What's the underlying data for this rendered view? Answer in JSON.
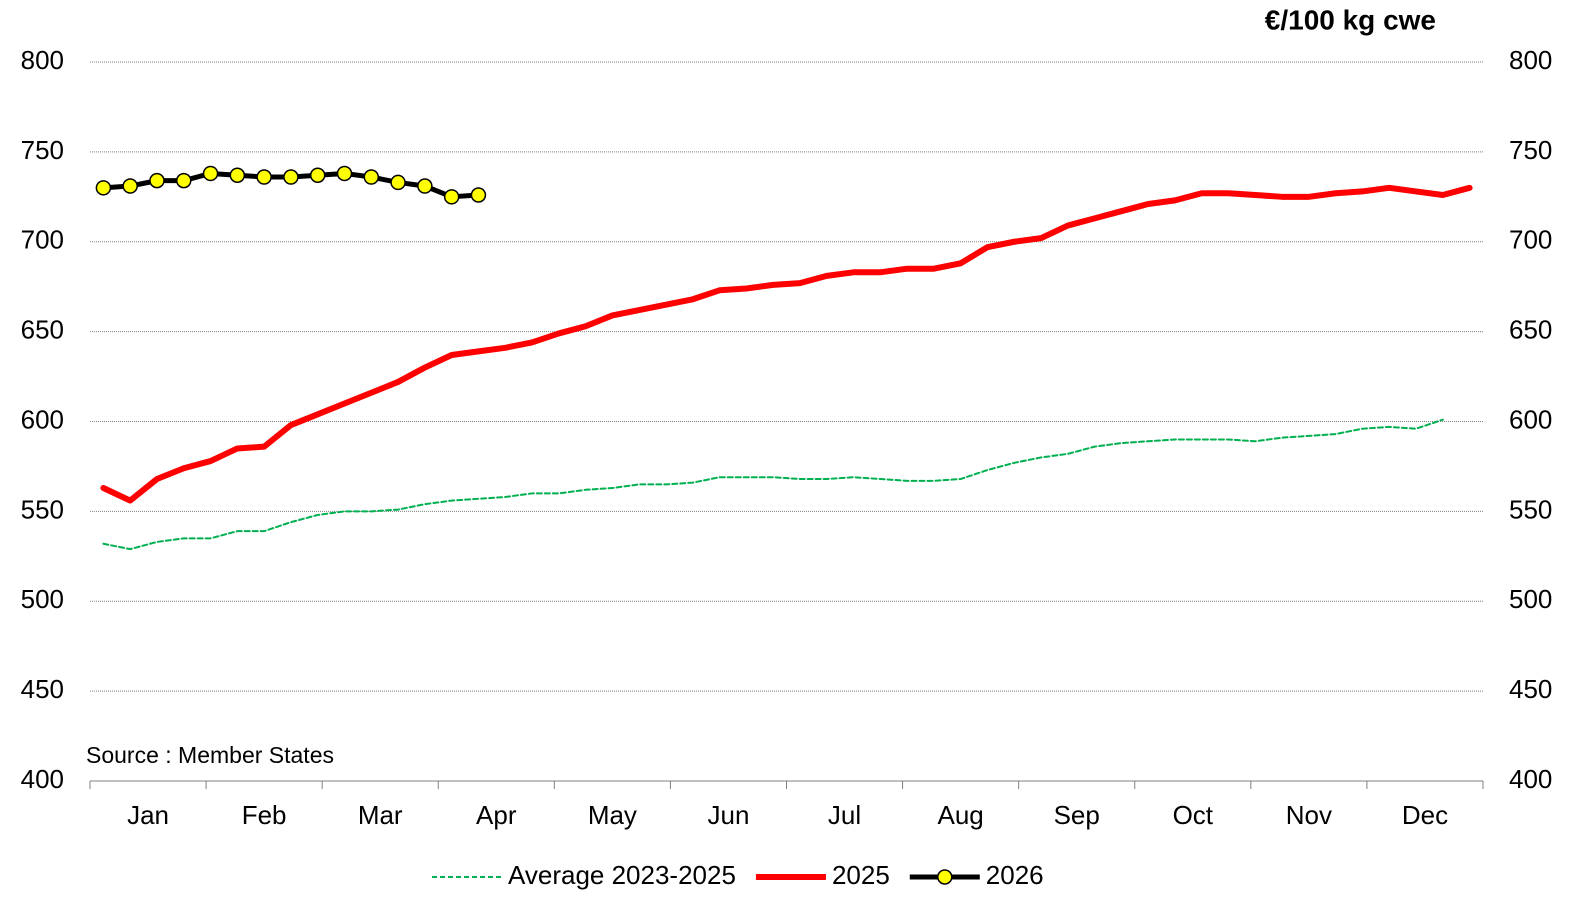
{
  "chart_data": {
    "type": "line",
    "unit_label": "€/100 kg  cwe",
    "annotation": "Source : Member States",
    "categories": [
      "Jan",
      "Feb",
      "Mar",
      "Apr",
      "May",
      "Jun",
      "Jul",
      "Aug",
      "Sep",
      "Oct",
      "Nov",
      "Dec"
    ],
    "x": [
      1,
      2,
      3,
      4,
      5,
      6,
      7,
      8,
      9,
      10,
      11,
      12,
      13,
      14,
      15,
      16,
      17,
      18,
      19,
      20,
      21,
      22,
      23,
      24,
      25,
      26,
      27,
      28,
      29,
      30,
      31,
      32,
      33,
      34,
      35,
      36,
      37,
      38,
      39,
      40,
      41,
      42,
      43,
      44,
      45,
      46,
      47,
      48,
      49,
      50,
      51,
      52
    ],
    "xlim": [
      0.5,
      52.5
    ],
    "ylim": [
      400,
      800
    ],
    "yticks": [
      400,
      450,
      500,
      550,
      600,
      650,
      700,
      750,
      800
    ],
    "grid": true,
    "legend": "bottom",
    "series": [
      {
        "name": "Average 2023-2025",
        "color": "#00b050",
        "style": "dashed",
        "values": [
          532,
          529,
          533,
          535,
          535,
          539,
          539,
          544,
          548,
          550,
          550,
          551,
          554,
          556,
          557,
          558,
          560,
          560,
          562,
          563,
          565,
          565,
          566,
          569,
          569,
          569,
          568,
          568,
          569,
          568,
          567,
          567,
          568,
          573,
          577,
          580,
          582,
          586,
          588,
          589,
          590,
          590,
          590,
          589,
          591,
          592,
          593,
          596,
          597,
          596,
          601,
          null
        ]
      },
      {
        "name": "2025",
        "color": "#ff0000",
        "style": "thick",
        "values": [
          563,
          556,
          568,
          574,
          578,
          585,
          586,
          598,
          604,
          610,
          616,
          622,
          630,
          637,
          639,
          641,
          644,
          649,
          653,
          659,
          662,
          665,
          668,
          673,
          674,
          676,
          677,
          681,
          683,
          683,
          685,
          685,
          688,
          697,
          700,
          702,
          709,
          713,
          717,
          721,
          723,
          727,
          727,
          726,
          725,
          725,
          727,
          728,
          730,
          728,
          726,
          730
        ]
      },
      {
        "name": "2026",
        "color": "#000000",
        "marker_color": "#ffff00",
        "style": "markers",
        "values": [
          730,
          731,
          734,
          734,
          738,
          737,
          736,
          736,
          737,
          738,
          736,
          733,
          731,
          725,
          726,
          null,
          null,
          null,
          null,
          null,
          null,
          null,
          null,
          null,
          null,
          null,
          null,
          null,
          null,
          null,
          null,
          null,
          null,
          null,
          null,
          null,
          null,
          null,
          null,
          null,
          null,
          null,
          null,
          null,
          null,
          null,
          null,
          null,
          null,
          null,
          null,
          null
        ]
      }
    ]
  }
}
